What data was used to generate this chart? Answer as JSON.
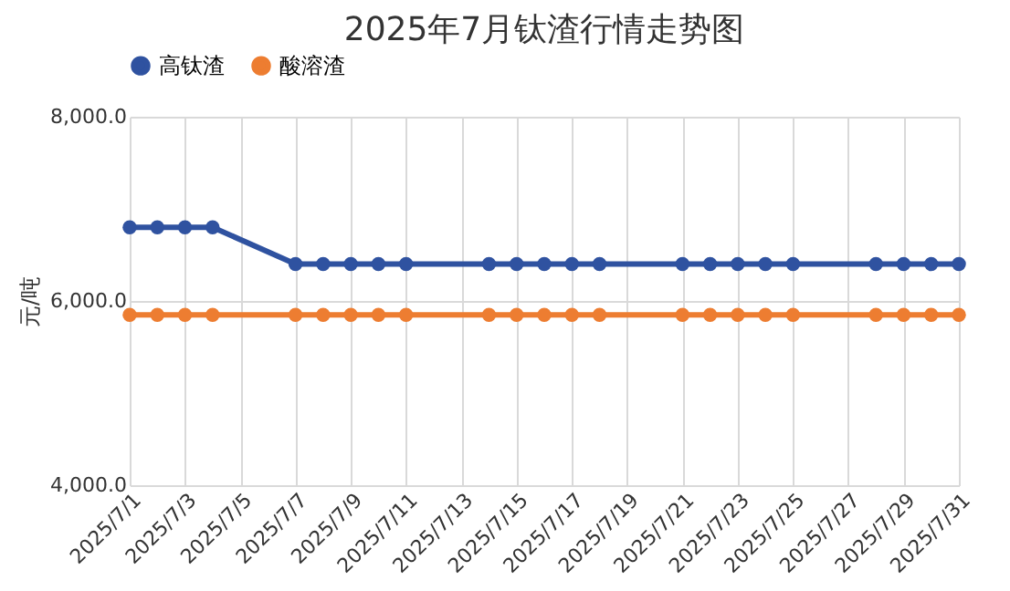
{
  "chart_data": {
    "type": "line",
    "title": "2025年7月钛渣行情走势图",
    "ylabel": "元/吨",
    "x": [
      "2025-07-01",
      "2025-07-02",
      "2025-07-03",
      "2025-07-04",
      "2025-07-07",
      "2025-07-08",
      "2025-07-09",
      "2025-07-10",
      "2025-07-11",
      "2025-07-14",
      "2025-07-15",
      "2025-07-16",
      "2025-07-17",
      "2025-07-18",
      "2025-07-21",
      "2025-07-22",
      "2025-07-23",
      "2025-07-24",
      "2025-07-25",
      "2025-07-28",
      "2025-07-29",
      "2025-07-30",
      "2025-07-31"
    ],
    "series": [
      {
        "name": "高钛渣",
        "color": "#2f52a0",
        "values": [
          6800,
          6800,
          6800,
          6800,
          6400,
          6400,
          6400,
          6400,
          6400,
          6400,
          6400,
          6400,
          6400,
          6400,
          6400,
          6400,
          6400,
          6400,
          6400,
          6400,
          6400,
          6400,
          6400
        ]
      },
      {
        "name": "酸溶渣",
        "color": "#ed7d31",
        "values": [
          5850,
          5850,
          5850,
          5850,
          5850,
          5850,
          5850,
          5850,
          5850,
          5850,
          5850,
          5850,
          5850,
          5850,
          5850,
          5850,
          5850,
          5850,
          5850,
          5850,
          5850,
          5850,
          5850
        ]
      }
    ],
    "xlim": [
      "2025-07-01",
      "2025-07-31"
    ],
    "xticks": [
      {
        "value": "2025-07-01",
        "label": "2025/7/1"
      },
      {
        "value": "2025-07-03",
        "label": "2025/7/3"
      },
      {
        "value": "2025-07-05",
        "label": "2025/7/5"
      },
      {
        "value": "2025-07-07",
        "label": "2025/7/7"
      },
      {
        "value": "2025-07-09",
        "label": "2025/7/9"
      },
      {
        "value": "2025-07-11",
        "label": "2025/7/11"
      },
      {
        "value": "2025-07-13",
        "label": "2025/7/13"
      },
      {
        "value": "2025-07-15",
        "label": "2025/7/15"
      },
      {
        "value": "2025-07-17",
        "label": "2025/7/17"
      },
      {
        "value": "2025-07-19",
        "label": "2025/7/19"
      },
      {
        "value": "2025-07-21",
        "label": "2025/7/21"
      },
      {
        "value": "2025-07-23",
        "label": "2025/7/23"
      },
      {
        "value": "2025-07-25",
        "label": "2025/7/25"
      },
      {
        "value": "2025-07-27",
        "label": "2025/7/27"
      },
      {
        "value": "2025-07-29",
        "label": "2025/7/29"
      },
      {
        "value": "2025-07-31",
        "label": "2025/7/31"
      }
    ],
    "ylim": [
      4000,
      8000
    ],
    "yticks": [
      {
        "value": 4000,
        "label": "4,000.0"
      },
      {
        "value": 6000,
        "label": "6,000.0"
      },
      {
        "value": 8000,
        "label": "8,000.0"
      }
    ],
    "grid": true,
    "legend": "top",
    "marker": "circle",
    "line_style": "solid"
  }
}
